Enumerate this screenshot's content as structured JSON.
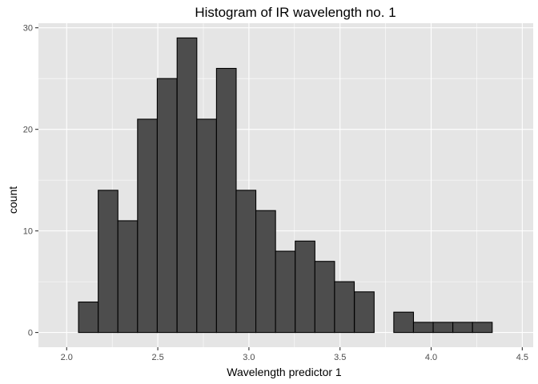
{
  "chart_data": {
    "type": "bar",
    "subtype": "histogram",
    "title": "Histogram of IR wavelength no. 1",
    "xlabel": "Wavelength predictor 1",
    "ylabel": "count",
    "bin_width": 0.1081,
    "bins": [
      {
        "start": 1.957,
        "count": 0
      },
      {
        "start": 2.065,
        "count": 3
      },
      {
        "start": 2.173,
        "count": 14
      },
      {
        "start": 2.281,
        "count": 11
      },
      {
        "start": 2.389,
        "count": 21
      },
      {
        "start": 2.497,
        "count": 25
      },
      {
        "start": 2.606,
        "count": 29
      },
      {
        "start": 2.714,
        "count": 21
      },
      {
        "start": 2.822,
        "count": 26
      },
      {
        "start": 2.93,
        "count": 14
      },
      {
        "start": 3.038,
        "count": 12
      },
      {
        "start": 3.146,
        "count": 8
      },
      {
        "start": 3.254,
        "count": 9
      },
      {
        "start": 3.362,
        "count": 7
      },
      {
        "start": 3.47,
        "count": 5
      },
      {
        "start": 3.579,
        "count": 4
      },
      {
        "start": 3.687,
        "count": 0
      },
      {
        "start": 3.795,
        "count": 2
      },
      {
        "start": 3.903,
        "count": 1
      },
      {
        "start": 4.011,
        "count": 1
      },
      {
        "start": 4.119,
        "count": 1
      },
      {
        "start": 4.227,
        "count": 1
      },
      {
        "start": 4.335,
        "count": 0
      }
    ],
    "xlim": [
      1.845,
      4.56
    ],
    "ylim": [
      -1.45,
      30.45
    ],
    "x_ticks": [
      "2.0",
      "2.5",
      "3.0",
      "3.5",
      "4.0",
      "4.5"
    ],
    "y_ticks": [
      "0",
      "10",
      "20",
      "30"
    ],
    "grid": true,
    "colors": {
      "panel_background": "#e5e5e5",
      "grid_major": "#ffffff",
      "bar_fill": "#4d4d4d",
      "bar_stroke": "#000000"
    }
  }
}
